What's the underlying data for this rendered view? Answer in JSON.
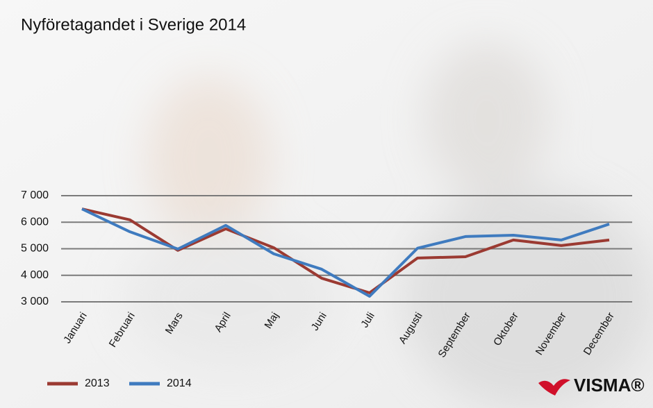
{
  "chart_data": {
    "type": "line",
    "title": "Nyföretagandet i Sverige 2014",
    "categories": [
      "Januari",
      "Februari",
      "Mars",
      "April",
      "Maj",
      "Juni",
      "Juli",
      "Augusti",
      "September",
      "Oktober",
      "November",
      "December"
    ],
    "series": [
      {
        "name": "2013",
        "color": "#9b3a32",
        "values": [
          6500,
          6090,
          4940,
          5750,
          5040,
          3890,
          3340,
          4650,
          4700,
          5330,
          5120,
          5330
        ]
      },
      {
        "name": "2014",
        "color": "#3f7bbf",
        "values": [
          6500,
          5640,
          4990,
          5880,
          4810,
          4230,
          3210,
          5020,
          5460,
          5510,
          5330,
          5930
        ]
      }
    ],
    "ylim": [
      3000,
      7000
    ],
    "yticks": [
      {
        "value": 3000,
        "label": "3 000"
      },
      {
        "value": 4000,
        "label": "4 000"
      },
      {
        "value": 5000,
        "label": "5 000"
      },
      {
        "value": 6000,
        "label": "6 000"
      },
      {
        "value": 7000,
        "label": "7 000"
      }
    ],
    "grid": true,
    "brand": "VISMA®"
  }
}
